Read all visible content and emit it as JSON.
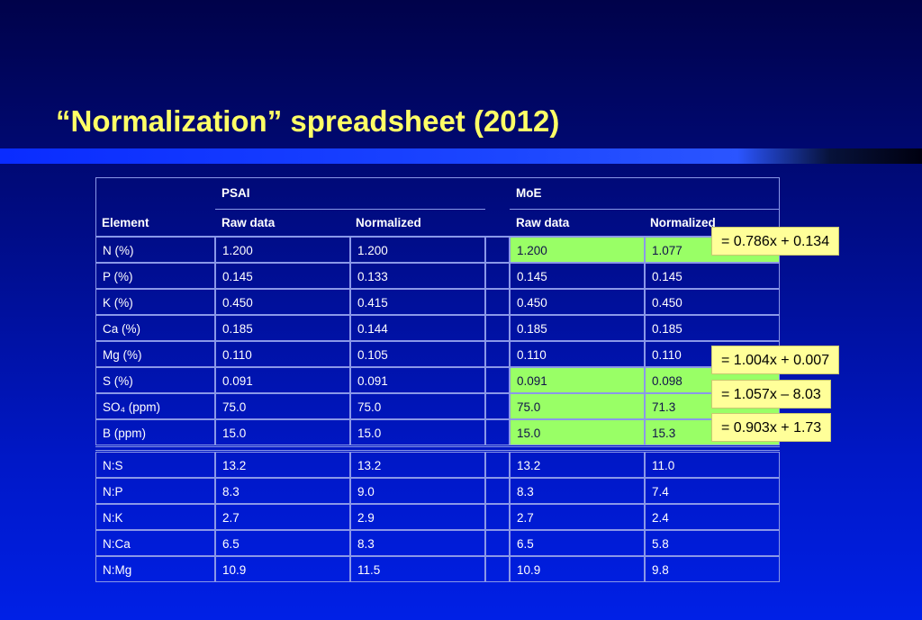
{
  "title": "“Normalization” spreadsheet (2012)",
  "groups": {
    "psai": "PSAI",
    "moe": "MoE"
  },
  "columns": {
    "element": "Element",
    "psai_raw": "Raw data",
    "psai_norm": "Normalized",
    "moe_raw": "Raw data",
    "moe_norm": "Normalized"
  },
  "rows": [
    {
      "element": "N (%)",
      "psai_raw": "1.200",
      "psai_norm": "1.200",
      "moe_raw": "1.200",
      "moe_norm": "1.077",
      "highlight": true
    },
    {
      "element": "P (%)",
      "psai_raw": "0.145",
      "psai_norm": "0.133",
      "moe_raw": "0.145",
      "moe_norm": "0.145",
      "highlight": false
    },
    {
      "element": "K (%)",
      "psai_raw": "0.450",
      "psai_norm": "0.415",
      "moe_raw": "0.450",
      "moe_norm": "0.450",
      "highlight": false
    },
    {
      "element": "Ca (%)",
      "psai_raw": "0.185",
      "psai_norm": "0.144",
      "moe_raw": "0.185",
      "moe_norm": "0.185",
      "highlight": false
    },
    {
      "element": "Mg (%)",
      "psai_raw": "0.110",
      "psai_norm": "0.105",
      "moe_raw": "0.110",
      "moe_norm": "0.110",
      "highlight": false
    },
    {
      "element": "S (%)",
      "psai_raw": "0.091",
      "psai_norm": "0.091",
      "moe_raw": "0.091",
      "moe_norm": "0.098",
      "highlight": true
    },
    {
      "element": "SO₄ (ppm)",
      "psai_raw": "75.0",
      "psai_norm": "75.0",
      "moe_raw": "75.0",
      "moe_norm": "71.3",
      "highlight": true
    },
    {
      "element": "B (ppm)",
      "psai_raw": "15.0",
      "psai_norm": "15.0",
      "moe_raw": "15.0",
      "moe_norm": "15.3",
      "highlight": true
    }
  ],
  "ratios": [
    {
      "element": "N:S",
      "psai_raw": "13.2",
      "psai_norm": "13.2",
      "moe_raw": "13.2",
      "moe_norm": "11.0"
    },
    {
      "element": "N:P",
      "psai_raw": "8.3",
      "psai_norm": "9.0",
      "moe_raw": "8.3",
      "moe_norm": "7.4"
    },
    {
      "element": "N:K",
      "psai_raw": "2.7",
      "psai_norm": "2.9",
      "moe_raw": "2.7",
      "moe_norm": "2.4"
    },
    {
      "element": "N:Ca",
      "psai_raw": "6.5",
      "psai_norm": "8.3",
      "moe_raw": "6.5",
      "moe_norm": "5.8"
    },
    {
      "element": "N:Mg",
      "psai_raw": "10.9",
      "psai_norm": "11.5",
      "moe_raw": "10.9",
      "moe_norm": "9.8"
    }
  ],
  "callouts": {
    "n_formula": "= 0.786x + 0.134",
    "s_formula": "= 1.004x + 0.007",
    "so4_formula": "= 1.057x – 8.03",
    "b_formula": "= 0.903x + 1.73"
  },
  "colors": {
    "title": "#ffff66",
    "highlight": "#99ff66",
    "callout": "#ffff99",
    "grid": "#8a98e8"
  }
}
